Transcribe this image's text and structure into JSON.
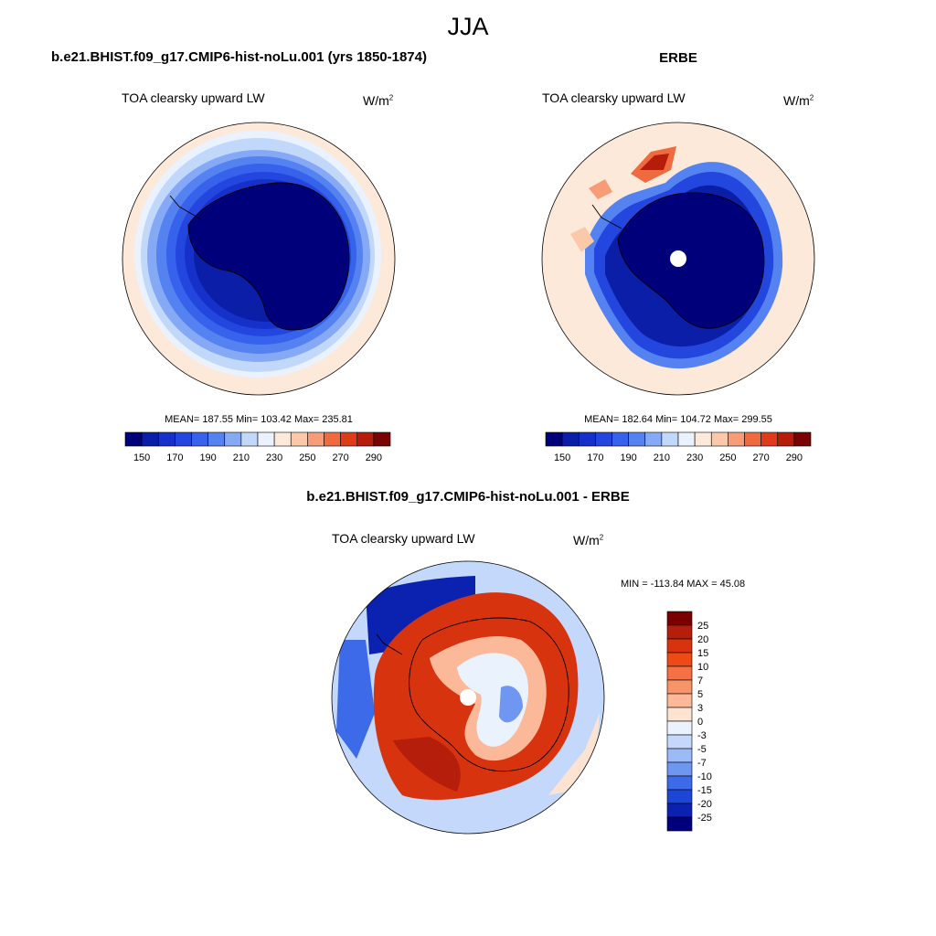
{
  "figure": {
    "title": "JJA",
    "season": "JJA"
  },
  "panels": {
    "top_left": {
      "title": "b.e21.BHIST.f09_g17.CMIP6-hist-noLu.001 (yrs 1850-1874)",
      "variable": "TOA clearsky upward LW",
      "units_base": "W/m",
      "units_exp": "2",
      "stats": "MEAN= 187.55  Min= 103.42  Max= 235.81"
    },
    "top_right": {
      "title": "ERBE",
      "variable": "TOA clearsky upward LW",
      "units_base": "W/m",
      "units_exp": "2",
      "stats": "MEAN= 182.64  Min= 104.72  Max= 299.55"
    },
    "bottom": {
      "title": "b.e21.BHIST.f09_g17.CMIP6-hist-noLu.001 - ERBE",
      "variable": "TOA clearsky upward LW",
      "units_base": "W/m",
      "units_exp": "2",
      "stats": "MIN = -113.84 MAX =  45.08"
    }
  },
  "chart_data": [
    {
      "type": "heatmap",
      "projection": "south polar stereographic",
      "title": "b.e21.BHIST.f09_g17.CMIP6-hist-noLu.001 (yrs 1850-1874)",
      "variable": "TOA clearsky upward LW",
      "units": "W/m2",
      "mean": 187.55,
      "min": 103.42,
      "max": 235.81,
      "colorbar_levels": [
        150,
        160,
        170,
        180,
        190,
        200,
        210,
        220,
        230,
        240,
        250,
        260,
        270,
        280,
        290
      ],
      "colorbar_tick_labels": [
        "150",
        "170",
        "190",
        "210",
        "230",
        "250",
        "270",
        "290"
      ],
      "colorbar_colors": [
        "#00007a",
        "#0b1ea8",
        "#1631c9",
        "#2346df",
        "#3662ec",
        "#5482f0",
        "#86a9f5",
        "#c2d8fb",
        "#e9f2fe",
        "#fde9d9",
        "#fbc8aa",
        "#f79c76",
        "#ef6a3f",
        "#de3b18",
        "#b51d0a",
        "#7a0404"
      ]
    },
    {
      "type": "heatmap",
      "projection": "south polar stereographic",
      "title": "ERBE",
      "variable": "TOA clearsky upward LW",
      "units": "W/m2",
      "mean": 182.64,
      "min": 104.72,
      "max": 299.55,
      "colorbar_levels": [
        150,
        160,
        170,
        180,
        190,
        200,
        210,
        220,
        230,
        240,
        250,
        260,
        270,
        280,
        290
      ],
      "colorbar_tick_labels": [
        "150",
        "170",
        "190",
        "210",
        "230",
        "250",
        "270",
        "290"
      ],
      "colorbar_colors": [
        "#00007a",
        "#0b1ea8",
        "#1631c9",
        "#2346df",
        "#3662ec",
        "#5482f0",
        "#86a9f5",
        "#c2d8fb",
        "#e9f2fe",
        "#fde9d9",
        "#fbc8aa",
        "#f79c76",
        "#ef6a3f",
        "#de3b18",
        "#b51d0a",
        "#7a0404"
      ]
    },
    {
      "type": "heatmap",
      "projection": "south polar stereographic",
      "title": "b.e21.BHIST.f09_g17.CMIP6-hist-noLu.001 - ERBE",
      "variable": "TOA clearsky upward LW",
      "units": "W/m2",
      "min": -113.84,
      "max": 45.08,
      "colorbar_levels": [
        -25,
        -20,
        -15,
        -10,
        -7,
        -5,
        -3,
        0,
        3,
        5,
        7,
        10,
        15,
        20,
        25
      ],
      "colorbar_tick_labels": [
        "25",
        "20",
        "15",
        "10",
        "7",
        "5",
        "3",
        "0",
        "-3",
        "-5",
        "-7",
        "-10",
        "-15",
        "-20",
        "-25"
      ],
      "colorbar_colors_top_to_bottom": [
        "#7a0000",
        "#b51e0a",
        "#d8330f",
        "#ef4a16",
        "#f57044",
        "#f7946a",
        "#fbb99a",
        "#fde3d2",
        "#eaf2fe",
        "#c3d8fb",
        "#9bbaf6",
        "#6f96f1",
        "#3d6ae8",
        "#1c46d6",
        "#0b22b0",
        "#00007a"
      ]
    }
  ]
}
